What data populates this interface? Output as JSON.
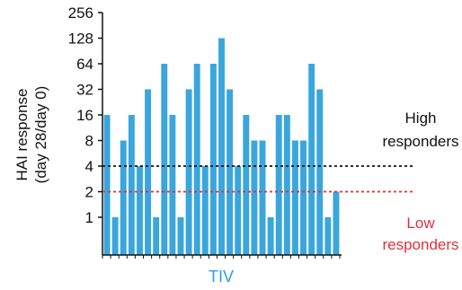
{
  "chart_data": {
    "type": "bar",
    "title": "",
    "xlabel": "TIV",
    "ylabel_lines": [
      "HAI response",
      "(day 28/day 0)"
    ],
    "y_scale": "log2",
    "ylim": [
      0.5,
      256
    ],
    "y_ticks": [
      1,
      2,
      4,
      8,
      16,
      32,
      64,
      128,
      256
    ],
    "y_tick_labels": [
      "1",
      "2",
      "4",
      "8",
      "16",
      "32",
      "64",
      "128",
      "256"
    ],
    "values": [
      16,
      1,
      8,
      16,
      4,
      32,
      1,
      64,
      16,
      1,
      32,
      64,
      4,
      64,
      128,
      32,
      4,
      16,
      8,
      8,
      1,
      16,
      16,
      8,
      8,
      64,
      32,
      1,
      2
    ],
    "bar_color": "#3aa6dc",
    "thresholds": [
      {
        "value": 4,
        "color": "#111111",
        "style": "dotted"
      },
      {
        "value": 2,
        "color": "#e0303a",
        "style": "dotted"
      }
    ],
    "annotations": [
      {
        "lines": [
          "High",
          "responders"
        ],
        "color": "#111111"
      },
      {
        "lines": [
          "Low",
          "responders"
        ],
        "color": "#e0303a"
      }
    ]
  }
}
